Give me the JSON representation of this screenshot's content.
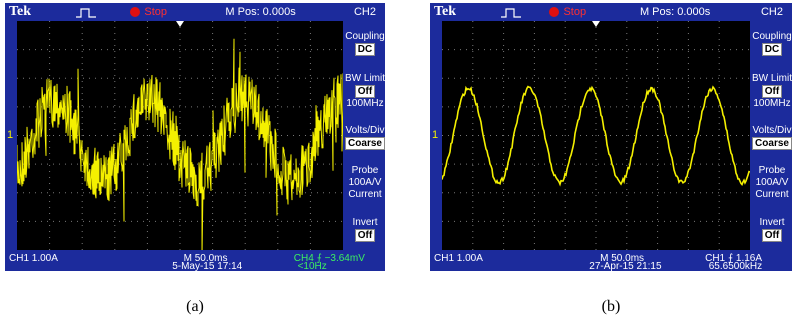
{
  "panels": [
    {
      "caption": "(a)",
      "header": {
        "brand": "Tek",
        "status": "Stop",
        "position": "M Pos: 0.000s",
        "channel": "CH2"
      },
      "channel_marker": "1",
      "menu": [
        {
          "title": "Coupling",
          "value": "DC"
        },
        {
          "title": "BW Limit",
          "value": "Off",
          "note": "100MHz"
        },
        {
          "title": "Volts/Div",
          "value": "Coarse"
        },
        {
          "title": "Probe",
          "lines": [
            "100A/V",
            "Current"
          ]
        },
        {
          "title": "Invert",
          "value": "Off"
        }
      ],
      "footer": {
        "scale": "CH1  1.00A",
        "timebase": "M 50.0ms",
        "date": "5-May-15 17:14",
        "trigger": "CH4 ⨍ −3.64mV",
        "frequency": "<10Hz"
      }
    },
    {
      "caption": "(b)",
      "header": {
        "brand": "Tek",
        "status": "Stop",
        "position": "M Pos: 0.000s",
        "channel": "CH2"
      },
      "channel_marker": "1",
      "menu": [
        {
          "title": "Coupling",
          "value": "DC"
        },
        {
          "title": "BW Limit",
          "value": "Off",
          "note": "100MHz"
        },
        {
          "title": "Volts/Div",
          "value": "Coarse"
        },
        {
          "title": "Probe",
          "lines": [
            "100A/V",
            "Current"
          ]
        },
        {
          "title": "Invert",
          "value": "Off"
        }
      ],
      "footer": {
        "scale": "CH1  1.00A",
        "timebase": "M 50.0ms",
        "date": "27-Apr-15 21:15",
        "trigger": "CH1 ⨍ 1.16A",
        "frequency": "65.6500kHz"
      }
    }
  ]
}
